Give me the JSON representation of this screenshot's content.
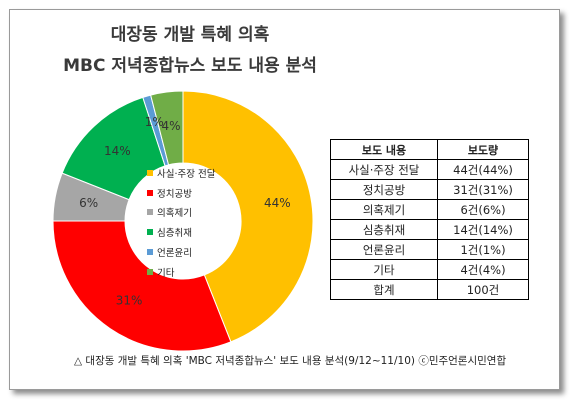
{
  "title_line1": "대장동 개발 특혜 의혹",
  "title_line2": "MBC 저녁종합뉴스 보도 내용 분석",
  "chart_data": {
    "type": "pie",
    "title": "대장동 개발 특혜 의혹 MBC 저녁종합뉴스 보도 내용 분석",
    "slices": [
      {
        "label": "사실·주장 전달",
        "value": 44,
        "percent_label": "44%",
        "color": "#FFC000"
      },
      {
        "label": "정치공방",
        "value": 31,
        "percent_label": "31%",
        "color": "#FF0000"
      },
      {
        "label": "의혹제기",
        "value": 6,
        "percent_label": "6%",
        "color": "#A6A6A6"
      },
      {
        "label": "심층취재",
        "value": 14,
        "percent_label": "14%",
        "color": "#00B050"
      },
      {
        "label": "언론윤리",
        "value": 1,
        "percent_label": "1%",
        "color": "#5B9BD5"
      },
      {
        "label": "기타",
        "value": 4,
        "percent_label": "4%",
        "color": "#70AD47"
      }
    ],
    "legend_position": "center"
  },
  "table": {
    "headers": [
      "보도 내용",
      "보도량"
    ],
    "rows": [
      [
        "사실·주장 전달",
        "44건(44%)"
      ],
      [
        "정치공방",
        "31건(31%)"
      ],
      [
        "의혹제기",
        "6건(6%)"
      ],
      [
        "심층취재",
        "14건(14%)"
      ],
      [
        "언론윤리",
        "1건(1%)"
      ],
      [
        "기타",
        "4건(4%)"
      ],
      [
        "합계",
        "100건"
      ]
    ]
  },
  "caption": "△ 대장동 개발 특혜 의혹 'MBC 저녁종합뉴스' 보도 내용 분석(9/12~11/10) ⓒ민주언론시민연합"
}
